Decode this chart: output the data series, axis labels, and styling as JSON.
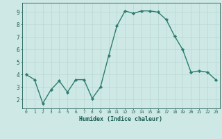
{
  "x": [
    0,
    1,
    2,
    3,
    4,
    5,
    6,
    7,
    8,
    9,
    10,
    11,
    12,
    13,
    14,
    15,
    16,
    17,
    18,
    19,
    20,
    21,
    22,
    23
  ],
  "y": [
    4.0,
    3.6,
    1.7,
    2.8,
    3.5,
    2.6,
    3.6,
    3.6,
    2.1,
    3.0,
    5.5,
    7.9,
    9.1,
    8.9,
    9.1,
    9.1,
    9.0,
    8.4,
    7.1,
    6.0,
    4.2,
    4.3,
    4.2,
    3.6
  ],
  "xlabel": "Humidex (Indice chaleur)",
  "xlim": [
    -0.5,
    23.5
  ],
  "ylim": [
    1.3,
    9.75
  ],
  "yticks": [
    2,
    3,
    4,
    5,
    6,
    7,
    8,
    9
  ],
  "xticks": [
    0,
    1,
    2,
    3,
    4,
    5,
    6,
    7,
    8,
    9,
    10,
    11,
    12,
    13,
    14,
    15,
    16,
    17,
    18,
    19,
    20,
    21,
    22,
    23
  ],
  "line_color": "#2d7d6f",
  "marker_color": "#2d7d6f",
  "bg_color": "#cde8e5",
  "grid_color": "#b8d8d4",
  "axis_label_color": "#1a5c52",
  "tick_color": "#1a5c52",
  "marker": "D",
  "marker_size": 2.2,
  "line_width": 1.0
}
